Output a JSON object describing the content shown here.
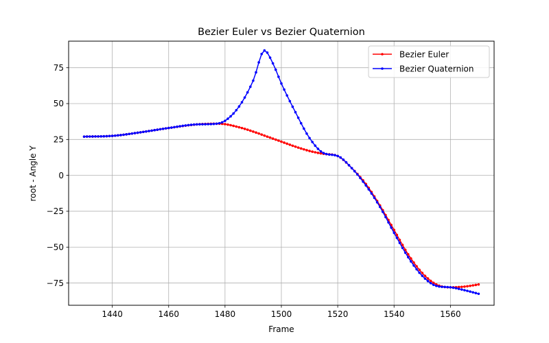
{
  "chart_data": {
    "type": "line",
    "title": "Bezier Euler vs Bezier Quaternion",
    "xlabel": "Frame",
    "ylabel": "root - Angle Y",
    "xlim": [
      1424.5,
      1575.5
    ],
    "ylim": [
      -90.5,
      93.5
    ],
    "xticks": [
      1440,
      1460,
      1480,
      1500,
      1520,
      1540,
      1560
    ],
    "yticks": [
      -75,
      -50,
      -25,
      0,
      25,
      50,
      75
    ],
    "grid": true,
    "legend_position": "top-right",
    "series": [
      {
        "name": "Bezier Euler",
        "color": "#ff0000",
        "marker": "dot",
        "keyframes": [
          [
            1430,
            27
          ],
          [
            1440,
            27.5
          ],
          [
            1450,
            30
          ],
          [
            1460,
            33
          ],
          [
            1470,
            35.5
          ],
          [
            1478,
            36
          ],
          [
            1485,
            33.5
          ],
          [
            1490,
            30.5
          ],
          [
            1495,
            27
          ],
          [
            1500,
            23.5
          ],
          [
            1505,
            20
          ],
          [
            1510,
            17
          ],
          [
            1515,
            15
          ],
          [
            1520,
            13.5
          ],
          [
            1525,
            5
          ],
          [
            1530,
            -6
          ],
          [
            1535,
            -21
          ],
          [
            1540,
            -38
          ],
          [
            1545,
            -55
          ],
          [
            1550,
            -68
          ],
          [
            1555,
            -76
          ],
          [
            1560,
            -78
          ],
          [
            1565,
            -77.5
          ],
          [
            1570,
            -76
          ]
        ]
      },
      {
        "name": "Bezier Quaternion",
        "color": "#0000ff",
        "marker": "dot",
        "keyframes": [
          [
            1430,
            27
          ],
          [
            1440,
            27.5
          ],
          [
            1450,
            30
          ],
          [
            1460,
            33
          ],
          [
            1470,
            35.5
          ],
          [
            1477,
            36
          ],
          [
            1480,
            38
          ],
          [
            1485,
            48
          ],
          [
            1490,
            66
          ],
          [
            1494,
            87
          ],
          [
            1497,
            78
          ],
          [
            1500,
            64
          ],
          [
            1505,
            44
          ],
          [
            1510,
            26
          ],
          [
            1515,
            15.5
          ],
          [
            1520,
            13.5
          ],
          [
            1525,
            5
          ],
          [
            1530,
            -7
          ],
          [
            1535,
            -22
          ],
          [
            1540,
            -40
          ],
          [
            1545,
            -57
          ],
          [
            1550,
            -70
          ],
          [
            1555,
            -77
          ],
          [
            1560,
            -78
          ],
          [
            1565,
            -80
          ],
          [
            1570,
            -82.5
          ]
        ]
      }
    ]
  }
}
